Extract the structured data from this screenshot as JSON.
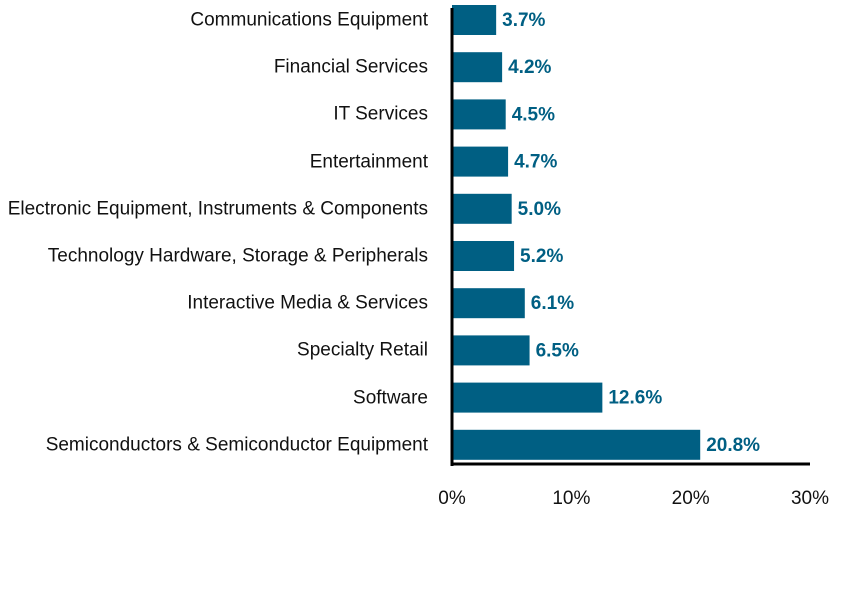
{
  "chart_data": {
    "type": "bar",
    "orientation": "horizontal",
    "categories": [
      "Communications Equipment",
      "Financial Services",
      "IT Services",
      "Entertainment",
      "Electronic Equipment, Instruments & Components",
      "Technology Hardware, Storage & Peripherals",
      "Interactive Media & Services",
      "Specialty Retail",
      "Software",
      "Semiconductors & Semiconductor Equipment"
    ],
    "values": [
      3.7,
      4.2,
      4.5,
      4.7,
      5.0,
      5.2,
      6.1,
      6.5,
      12.6,
      20.8
    ],
    "value_labels": [
      "3.7%",
      "4.2%",
      "4.5%",
      "4.7%",
      "5.0%",
      "5.2%",
      "6.1%",
      "6.5%",
      "12.6%",
      "20.8%"
    ],
    "color": "#005f83",
    "xlim": [
      0,
      30
    ],
    "xticks": [
      {
        "value": 0,
        "label": "0%"
      },
      {
        "value": 10,
        "label": "10%"
      },
      {
        "value": 20,
        "label": "20%"
      },
      {
        "value": 30,
        "label": "30%"
      }
    ],
    "grid": false
  }
}
